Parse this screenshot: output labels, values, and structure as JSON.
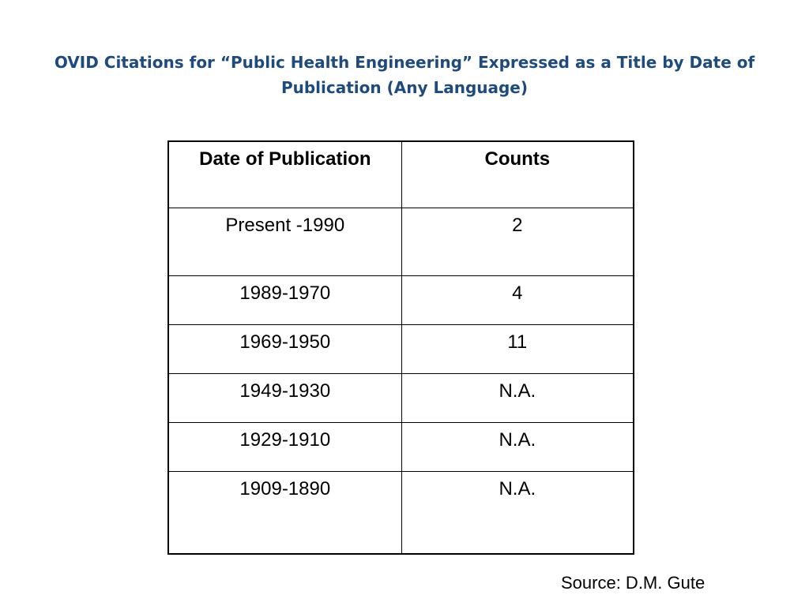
{
  "title": "OVID Citations for “Public Health Engineering” Expressed as a Title by Date of Publication (Any Language)",
  "table": {
    "headers": [
      "Date of Publication",
      "Counts"
    ],
    "rows": [
      [
        "Present -1990",
        "2"
      ],
      [
        "1989-1970",
        "4"
      ],
      [
        "1969-1950",
        "11"
      ],
      [
        "1949-1930",
        "N.A."
      ],
      [
        "1929-1910",
        "N.A."
      ],
      [
        "1909-1890",
        "N.A."
      ]
    ]
  },
  "source": "Source: D.M. Gute"
}
